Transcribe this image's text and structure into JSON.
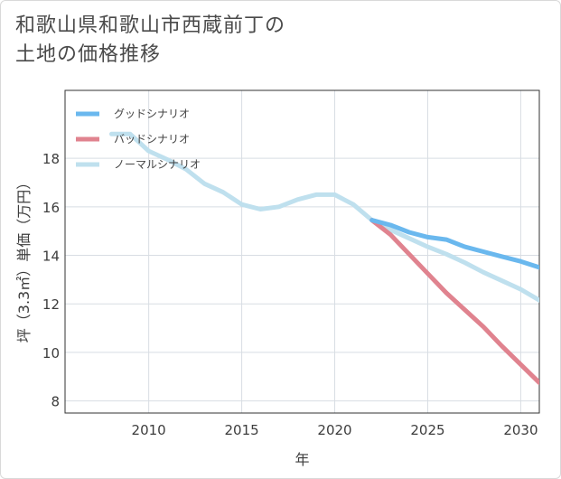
{
  "title_line1": "和歌山県和歌山市西蔵前丁の",
  "title_line2": "土地の価格推移",
  "chart_data": {
    "type": "line",
    "title": "和歌山県和歌山市西蔵前丁の土地の価格推移",
    "xlabel": "年",
    "ylabel": "坪（3.3㎡）単価（万円）",
    "xlim": [
      2005.5,
      2031
    ],
    "ylim": [
      7.5,
      20.8
    ],
    "xticks": [
      2010,
      2015,
      2020,
      2025,
      2030
    ],
    "yticks": [
      8,
      10,
      12,
      14,
      16,
      18
    ],
    "grid": true,
    "legend_position": "top-left",
    "series": [
      {
        "name": "グッドシナリオ",
        "color": "#6ab8ee",
        "x": [
          2022,
          2023,
          2024,
          2025,
          2026,
          2027,
          2028,
          2029,
          2030,
          2031
        ],
        "values": [
          15.45,
          15.25,
          14.95,
          14.75,
          14.65,
          14.35,
          14.15,
          13.95,
          13.75,
          13.5
        ]
      },
      {
        "name": "バッドシナリオ",
        "color": "#e0838f",
        "x": [
          2022,
          2023,
          2024,
          2025,
          2026,
          2027,
          2028,
          2029,
          2030,
          2031
        ],
        "values": [
          15.45,
          14.85,
          14.05,
          13.25,
          12.45,
          11.75,
          11.05,
          10.25,
          9.5,
          8.75
        ]
      },
      {
        "name": "ノーマルシナリオ",
        "color": "#bfe0ee",
        "x": [
          2008,
          2009,
          2010,
          2011,
          2012,
          2013,
          2014,
          2015,
          2016,
          2017,
          2018,
          2019,
          2020,
          2021,
          2022,
          2023,
          2024,
          2025,
          2026,
          2027,
          2028,
          2029,
          2030,
          2031
        ],
        "values": [
          19.0,
          19.0,
          18.3,
          17.95,
          17.55,
          16.95,
          16.6,
          16.1,
          15.9,
          16.0,
          16.3,
          16.5,
          16.5,
          16.1,
          15.45,
          15.05,
          14.7,
          14.35,
          14.05,
          13.7,
          13.3,
          12.95,
          12.6,
          12.15
        ]
      }
    ]
  }
}
